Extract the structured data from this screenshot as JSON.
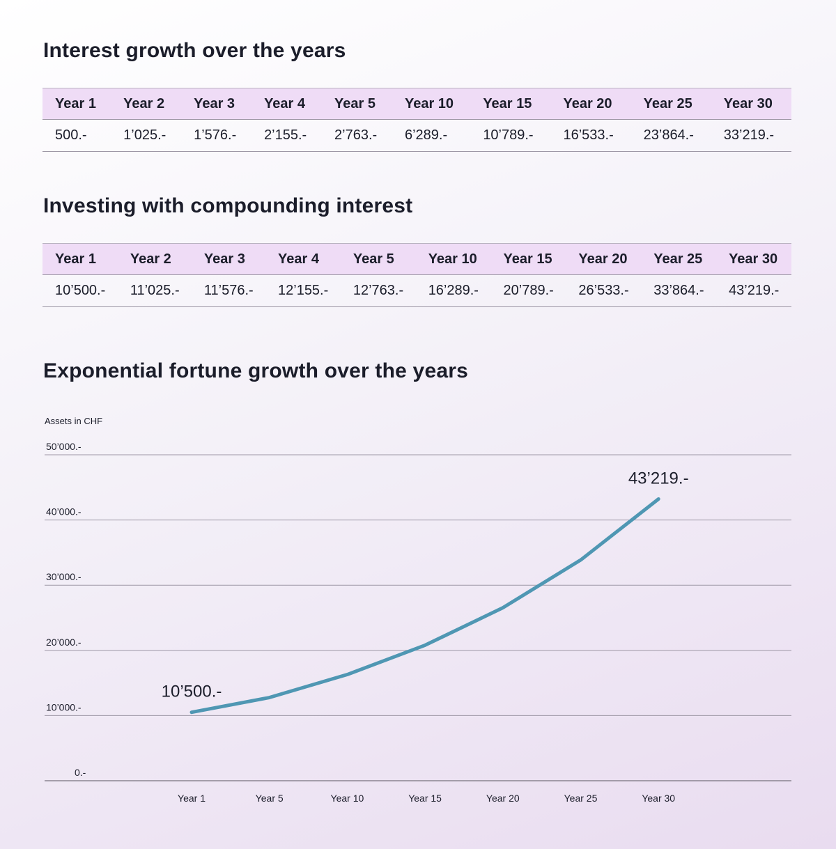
{
  "table1": {
    "title": "Interest growth over the years",
    "headers": [
      "Year 1",
      "Year 2",
      "Year 3",
      "Year 4",
      "Year 5",
      "Year 10",
      "Year 15",
      "Year 20",
      "Year 25",
      "Year 30"
    ],
    "values": [
      "500.-",
      "1’025.-",
      "1’576.-",
      "2’155.-",
      "2’763.-",
      "6’289.-",
      "10’789.-",
      "16’533.-",
      "23’864.-",
      "33’219.-"
    ]
  },
  "table2": {
    "title": "Investing with compounding interest",
    "headers": [
      "Year 1",
      "Year 2",
      "Year 3",
      "Year 4",
      "Year 5",
      "Year 10",
      "Year 15",
      "Year 20",
      "Year 25",
      "Year 30"
    ],
    "values": [
      "10’500.-",
      "11’025.-",
      "11’576.-",
      "12’155.-",
      "12’763.-",
      "16’289.-",
      "20’789.-",
      "26’533.-",
      "33’864.-",
      "43’219.-"
    ]
  },
  "colors": {
    "header_bg": "#efdcf6",
    "line": "#4f97b3"
  },
  "chart_data": {
    "type": "line",
    "title": "Exponential fortune growth over the years",
    "ylabel": "Assets in CHF",
    "xlabel": "",
    "categories": [
      "Year 1",
      "Year 5",
      "Year 10",
      "Year 15",
      "Year 20",
      "Year 25",
      "Year 30"
    ],
    "values": [
      10500,
      12763,
      16289,
      20789,
      26533,
      33864,
      43219
    ],
    "ylim": [
      0,
      50000
    ],
    "yticks": [
      0,
      10000,
      20000,
      30000,
      40000,
      50000
    ],
    "ytick_labels": [
      "0.-",
      "10’000.-",
      "20’000.-",
      "30’000.-",
      "40’000.-",
      "50’000.-"
    ],
    "annotations": [
      {
        "category": "Year 1",
        "text": "10’500.-"
      },
      {
        "category": "Year 30",
        "text": "43’219.-"
      }
    ],
    "grid": true
  }
}
